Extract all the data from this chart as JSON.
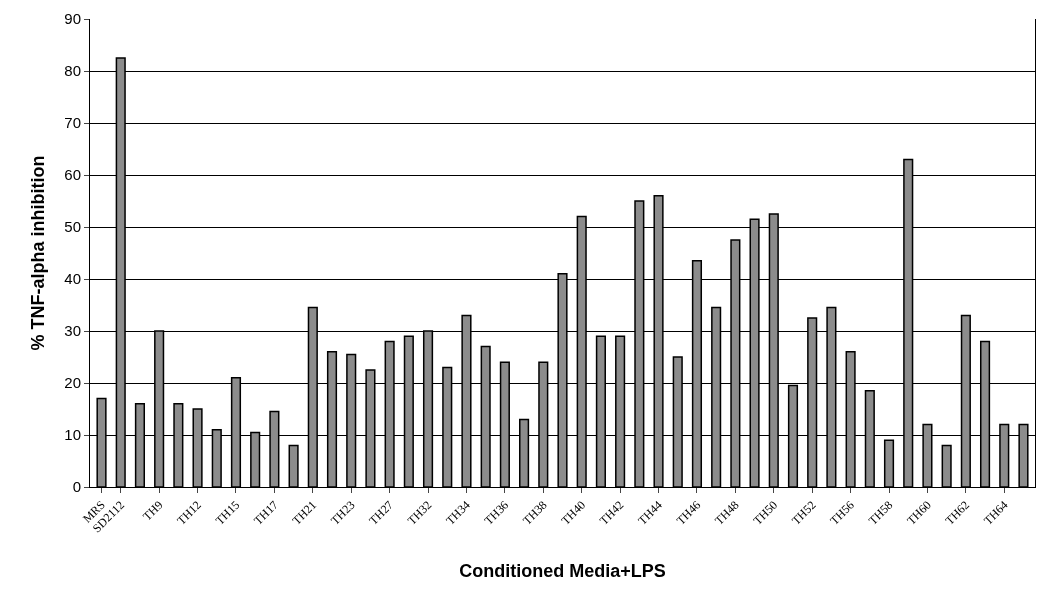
{
  "chart_data": {
    "type": "bar",
    "xlabel": "Conditioned Media+LPS",
    "ylabel": "% TNF-alpha inhibition",
    "categories": [
      "MRS",
      "SD2112",
      null,
      "TH9",
      null,
      "TH12",
      null,
      "TH15",
      null,
      "TH17",
      null,
      "TH21",
      null,
      "TH23",
      null,
      "TH27",
      null,
      "TH32",
      null,
      "TH34",
      null,
      "TH36",
      null,
      "TH38",
      null,
      "TH40",
      null,
      "TH42",
      null,
      "TH44",
      null,
      "TH46",
      null,
      "TH48",
      null,
      "TH50",
      null,
      "TH52",
      null,
      "TH56",
      null,
      "TH58",
      null,
      "TH60",
      null,
      "TH62",
      null,
      "TH64",
      null
    ],
    "values": [
      17,
      82.5,
      16,
      30,
      16,
      15,
      11,
      21,
      10.5,
      14.5,
      8,
      34.5,
      26,
      25.5,
      22.5,
      28,
      29,
      30,
      23,
      33,
      27,
      24,
      13,
      24,
      41,
      52,
      29,
      29,
      55,
      56,
      25,
      43.5,
      34.5,
      47.5,
      51.5,
      52.5,
      19.5,
      32.5,
      34.5,
      26,
      18.5,
      9,
      63,
      12,
      8,
      33,
      28,
      12,
      12
    ],
    "color": "#8c8c8c",
    "ylim": [
      0,
      90
    ],
    "yticks": [
      0,
      10,
      20,
      30,
      40,
      50,
      60,
      70,
      80,
      90
    ],
    "grid": "y"
  }
}
